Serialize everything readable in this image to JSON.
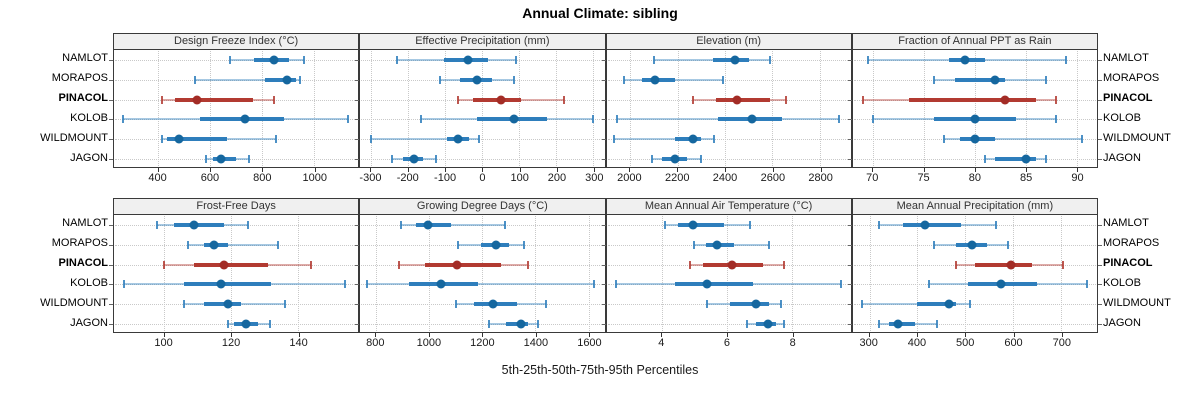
{
  "meta": {
    "title": "Annual Climate: sibling",
    "caption": "5th-25th-50th-75th-95th Percentiles",
    "colors": {
      "normal": {
        "dot": "#15679f",
        "bar": "#2e7ebc"
      },
      "highlight": {
        "dot": "#a32c26",
        "bar": "#b23a31"
      },
      "grid": "#c9c9c9",
      "panel_border": "#3a3a3a",
      "header_bg": "#f0f0f0"
    }
  },
  "chart_data": {
    "type": "dotplot-intervals",
    "layout": {
      "rows": 2,
      "cols": 4,
      "grid": "dotted",
      "site_labels": "both-sides"
    },
    "title": "Annual Climate: sibling",
    "xlabel": "5th-25th-50th-75th-95th Percentiles",
    "percentile_labels": [
      "5th",
      "25th",
      "50th",
      "75th",
      "95th"
    ],
    "sites": [
      "NAMLOT",
      "MORAPOS",
      "PINACOL",
      "KOLOB",
      "WILDMOUNT",
      "JAGON"
    ],
    "highlight_site": "PINACOL",
    "panels": [
      {
        "title": "Design Freeze Index (°C)",
        "ticks": [
          400,
          600,
          800,
          1000
        ],
        "xlim": [
          230,
          1170
        ],
        "values": [
          [
            675,
            770,
            845,
            905,
            960
          ],
          [
            540,
            810,
            895,
            930,
            945
          ],
          [
            415,
            465,
            550,
            765,
            845
          ],
          [
            265,
            560,
            735,
            885,
            1130
          ],
          [
            415,
            435,
            480,
            665,
            855
          ],
          [
            585,
            610,
            640,
            700,
            750
          ]
        ]
      },
      {
        "title": "Effective Precipitation (mm)",
        "ticks": [
          -300,
          -200,
          -100,
          0,
          100,
          200,
          300
        ],
        "xlim": [
          -330,
          330
        ],
        "values": [
          [
            -230,
            -105,
            -40,
            15,
            90
          ],
          [
            -115,
            -60,
            -15,
            25,
            85
          ],
          [
            -65,
            -25,
            50,
            105,
            220
          ],
          [
            -165,
            -15,
            85,
            175,
            300
          ],
          [
            -300,
            -95,
            -65,
            -35,
            -10
          ],
          [
            -245,
            -215,
            -185,
            -160,
            -125
          ]
        ]
      },
      {
        "title": "Elevation (m)",
        "ticks": [
          2000,
          2200,
          2400,
          2600,
          2800
        ],
        "xlim": [
          1900,
          2930
        ],
        "values": [
          [
            2100,
            2350,
            2440,
            2500,
            2590
          ],
          [
            1975,
            2050,
            2105,
            2190,
            2390
          ],
          [
            2265,
            2360,
            2450,
            2590,
            2655
          ],
          [
            1945,
            2370,
            2515,
            2640,
            2880
          ],
          [
            1930,
            2190,
            2265,
            2300,
            2355
          ],
          [
            2090,
            2135,
            2190,
            2240,
            2300
          ]
        ]
      },
      {
        "title": "Fraction of Annual PPT as Rain",
        "ticks": [
          70,
          75,
          80,
          85,
          90
        ],
        "xlim": [
          68,
          92
        ],
        "values": [
          [
            69.5,
            77.5,
            79,
            81,
            89
          ],
          [
            76,
            78,
            82,
            83,
            87
          ],
          [
            69,
            73.5,
            83,
            86,
            88
          ],
          [
            70,
            76,
            80,
            84,
            88
          ],
          [
            77,
            78.5,
            80,
            82,
            90.5
          ],
          [
            81,
            82,
            85,
            86,
            87
          ]
        ]
      },
      {
        "title": "Frost-Free Days",
        "ticks": [
          100,
          120,
          140
        ],
        "xlim": [
          85,
          158
        ],
        "values": [
          [
            98,
            103,
            109,
            118,
            125
          ],
          [
            107,
            112,
            115,
            119,
            134
          ],
          [
            100,
            109,
            118,
            131,
            144
          ],
          [
            88,
            106,
            117,
            132,
            154
          ],
          [
            106,
            112,
            119,
            123,
            136
          ],
          [
            119,
            121,
            124.5,
            128,
            131.5
          ]
        ]
      },
      {
        "title": "Growing Degree Days (°C)",
        "ticks": [
          800,
          1000,
          1200,
          1400,
          1600
        ],
        "xlim": [
          740,
          1660
        ],
        "values": [
          [
            895,
            950,
            995,
            1080,
            1285
          ],
          [
            1110,
            1195,
            1250,
            1300,
            1355
          ],
          [
            885,
            985,
            1105,
            1270,
            1370
          ],
          [
            765,
            925,
            1045,
            1185,
            1620
          ],
          [
            1100,
            1170,
            1240,
            1330,
            1440
          ],
          [
            1225,
            1290,
            1345,
            1370,
            1410
          ]
        ]
      },
      {
        "title": "Mean Annual Air Temperature (°C)",
        "ticks": [
          4,
          6,
          8
        ],
        "xlim": [
          2.3,
          9.8
        ],
        "values": [
          [
            4.1,
            4.5,
            4.95,
            5.9,
            6.7
          ],
          [
            5.0,
            5.35,
            5.7,
            6.2,
            7.3
          ],
          [
            4.85,
            5.25,
            6.15,
            7.1,
            7.75
          ],
          [
            2.6,
            4.4,
            5.4,
            6.8,
            9.5
          ],
          [
            5.4,
            6.1,
            6.9,
            7.3,
            7.65
          ],
          [
            6.6,
            6.9,
            7.25,
            7.5,
            7.75
          ]
        ]
      },
      {
        "title": "Mean Annual Precipitation (mm)",
        "ticks": [
          300,
          400,
          500,
          600,
          700
        ],
        "xlim": [
          265,
          775
        ],
        "values": [
          [
            320,
            370,
            415,
            490,
            565
          ],
          [
            435,
            480,
            515,
            545,
            590
          ],
          [
            480,
            520,
            595,
            640,
            705
          ],
          [
            425,
            505,
            575,
            650,
            755
          ],
          [
            285,
            400,
            465,
            480,
            510
          ],
          [
            320,
            340,
            360,
            395,
            440
          ]
        ]
      }
    ]
  }
}
